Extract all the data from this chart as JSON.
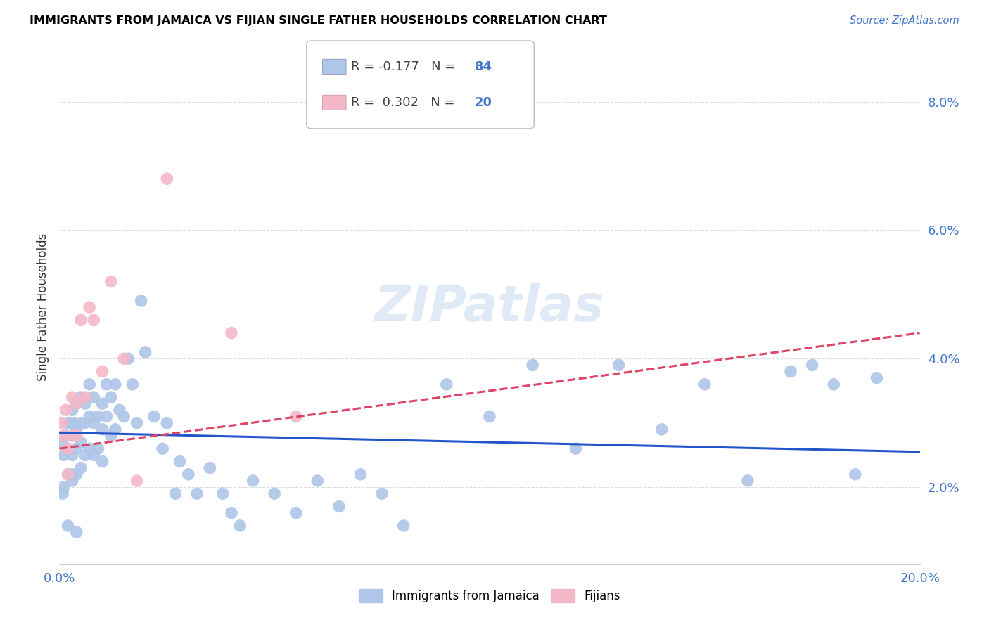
{
  "title": "IMMIGRANTS FROM JAMAICA VS FIJIAN SINGLE FATHER HOUSEHOLDS CORRELATION CHART",
  "source": "Source: ZipAtlas.com",
  "ylabel": "Single Father Households",
  "xlim": [
    0.0,
    0.2
  ],
  "ylim": [
    0.008,
    0.088
  ],
  "xticks": [
    0.0,
    0.05,
    0.1,
    0.15,
    0.2
  ],
  "xtick_labels": [
    "0.0%",
    "",
    "",
    "",
    "20.0%"
  ],
  "yticks": [
    0.02,
    0.04,
    0.06,
    0.08
  ],
  "ytick_labels": [
    "2.0%",
    "4.0%",
    "6.0%",
    "8.0%"
  ],
  "jamaica_color": "#aec6e8",
  "fijian_color": "#f4b8c8",
  "jamaica_line_color": "#2255cc",
  "fijian_line_color": "#dd4466",
  "watermark": "ZIPatlas",
  "tick_color": "#4477cc",
  "jamaica_x": [
    0.0005,
    0.001,
    0.001,
    0.0015,
    0.002,
    0.002,
    0.002,
    0.0025,
    0.003,
    0.003,
    0.003,
    0.003,
    0.0035,
    0.004,
    0.004,
    0.004,
    0.004,
    0.005,
    0.005,
    0.005,
    0.005,
    0.006,
    0.006,
    0.006,
    0.007,
    0.007,
    0.007,
    0.008,
    0.008,
    0.008,
    0.009,
    0.009,
    0.01,
    0.01,
    0.01,
    0.011,
    0.011,
    0.012,
    0.012,
    0.013,
    0.013,
    0.014,
    0.015,
    0.016,
    0.017,
    0.018,
    0.019,
    0.02,
    0.022,
    0.024,
    0.025,
    0.027,
    0.028,
    0.03,
    0.032,
    0.035,
    0.038,
    0.04,
    0.042,
    0.045,
    0.05,
    0.055,
    0.06,
    0.065,
    0.07,
    0.075,
    0.08,
    0.09,
    0.1,
    0.11,
    0.12,
    0.13,
    0.14,
    0.15,
    0.16,
    0.17,
    0.175,
    0.18,
    0.185,
    0.19,
    0.0008,
    0.002,
    0.003,
    0.004
  ],
  "jamaica_y": [
    0.027,
    0.025,
    0.02,
    0.028,
    0.03,
    0.026,
    0.022,
    0.03,
    0.032,
    0.028,
    0.025,
    0.022,
    0.03,
    0.033,
    0.029,
    0.026,
    0.022,
    0.034,
    0.03,
    0.027,
    0.023,
    0.033,
    0.03,
    0.025,
    0.036,
    0.031,
    0.026,
    0.034,
    0.03,
    0.025,
    0.031,
    0.026,
    0.033,
    0.029,
    0.024,
    0.036,
    0.031,
    0.034,
    0.028,
    0.036,
    0.029,
    0.032,
    0.031,
    0.04,
    0.036,
    0.03,
    0.049,
    0.041,
    0.031,
    0.026,
    0.03,
    0.019,
    0.024,
    0.022,
    0.019,
    0.023,
    0.019,
    0.016,
    0.014,
    0.021,
    0.019,
    0.016,
    0.021,
    0.017,
    0.022,
    0.019,
    0.014,
    0.036,
    0.031,
    0.039,
    0.026,
    0.039,
    0.029,
    0.036,
    0.021,
    0.038,
    0.039,
    0.036,
    0.022,
    0.037,
    0.019,
    0.014,
    0.021,
    0.013
  ],
  "fijian_x": [
    0.0005,
    0.001,
    0.0015,
    0.002,
    0.002,
    0.003,
    0.003,
    0.004,
    0.004,
    0.005,
    0.006,
    0.007,
    0.008,
    0.01,
    0.012,
    0.015,
    0.018,
    0.025,
    0.04,
    0.055
  ],
  "fijian_y": [
    0.03,
    0.028,
    0.032,
    0.026,
    0.022,
    0.034,
    0.028,
    0.033,
    0.028,
    0.046,
    0.034,
    0.048,
    0.046,
    0.038,
    0.052,
    0.04,
    0.021,
    0.068,
    0.044,
    0.031
  ],
  "jamaica_trend_y0": 0.0285,
  "jamaica_trend_y1": 0.0255,
  "fijian_trend_y0": 0.026,
  "fijian_trend_y1": 0.044
}
